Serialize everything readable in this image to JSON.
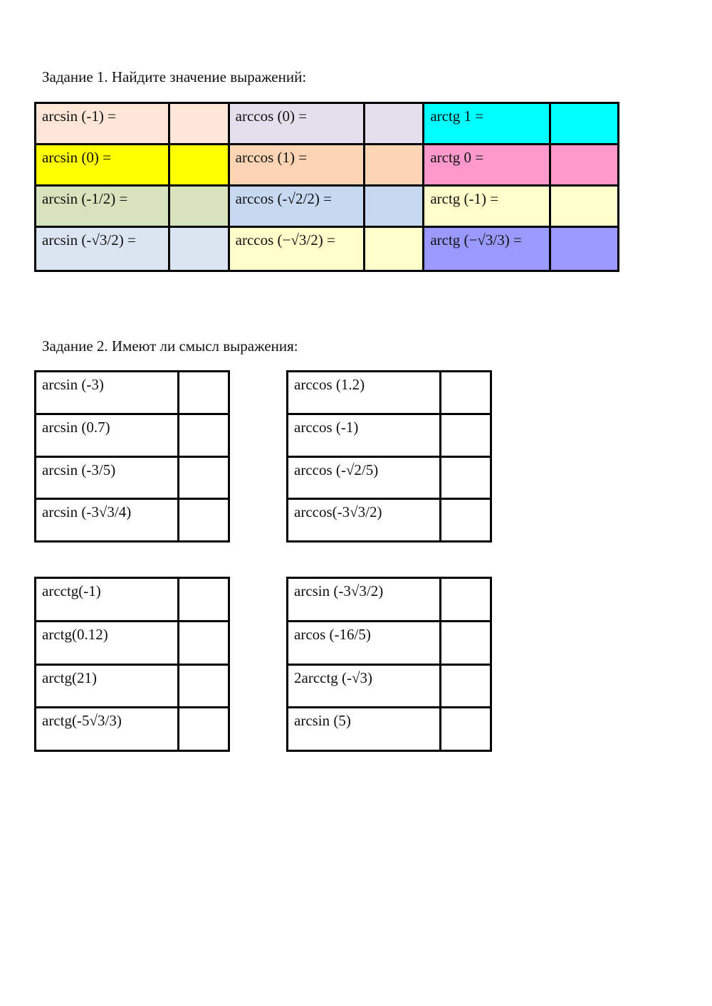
{
  "task1": {
    "title": "Задание 1. Найдите значение выражений:",
    "rows": [
      [
        {
          "text": "arcsin (-1) =",
          "color": "#fde5d8"
        },
        {
          "text": "arccos (0) =",
          "color": "#e4dfec"
        },
        {
          "text": "arctg 1 =",
          "color": "#00ffff"
        }
      ],
      [
        {
          "text": "arcsin (0) =",
          "color": "#ffff00"
        },
        {
          "text": "arccos (1) =",
          "color": "#fbd4b4"
        },
        {
          "text": "arctg 0 =",
          "color": "#ff99cc"
        }
      ],
      [
        {
          "text": "arcsin (-1/2) =",
          "color": "#d6e3bc"
        },
        {
          "text": "arccos (-√2/2) =",
          "color": "#c6d9f0"
        },
        {
          "text": "arctg (-1) =",
          "color": "#ffffcc"
        }
      ],
      [
        {
          "text": "arcsin (-√3/2) =",
          "color": "#dbe5f1"
        },
        {
          "text": "arccos (−√3/2) =",
          "color": "#ffffcc"
        },
        {
          "text": "arctg (−√3/3) =",
          "color": "#9999ff"
        }
      ]
    ]
  },
  "task2": {
    "title": "Задание 2. Имеют ли смысл выражения:",
    "tables": [
      [
        "arcsin (-3)",
        "arcsin (0.7)",
        "arcsin (-3/5)",
        "arcsin (-3√3/4)"
      ],
      [
        "arccos (1.2)",
        "arccos (-1)",
        "arccos (-√2/5)",
        "arccos(-3√3/2)"
      ],
      [
        "arcctg(-1)",
        "arctg(0.12)",
        "arctg(21)",
        "arctg(-5√3/3)"
      ],
      [
        "arcsin (-3√3/2)",
        "arcos (-16/5)",
        "2arcctg (-√3)",
        "arcsin (5)"
      ]
    ]
  }
}
